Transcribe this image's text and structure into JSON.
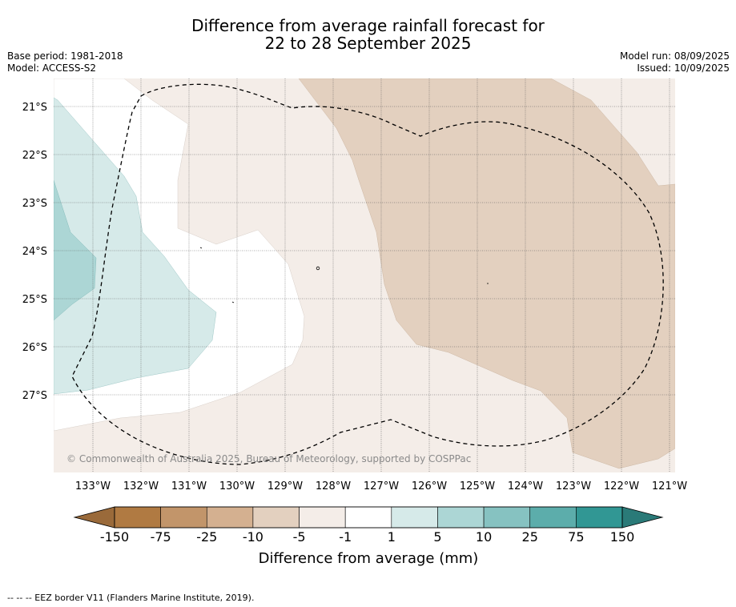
{
  "title": {
    "line1": "Difference from average rainfall forecast for",
    "line2": "22 to 28 September 2025"
  },
  "meta": {
    "base_period": "Base period: 1981-2018",
    "model": "Model: ACCESS-S2",
    "model_run": "Model run: 08/09/2025",
    "issued": "Issued: 10/09/2025"
  },
  "map": {
    "lat_labels": [
      "21°S",
      "22°S",
      "23°S",
      "24°S",
      "25°S",
      "26°S",
      "27°S"
    ],
    "lon_labels": [
      "133°W",
      "132°W",
      "131°W",
      "130°W",
      "129°W",
      "128°W",
      "127°W",
      "126°W",
      "125°W",
      "124°W",
      "123°W",
      "122°W",
      "121°W"
    ],
    "copyright": "© Commonwealth of Australia 2025, Bureau of Meteorology, supported by COSPPac",
    "eez_border": "dashed"
  },
  "colorbar": {
    "title": "Difference from average (mm)",
    "tick_labels": [
      "-150",
      "-75",
      "-25",
      "-10",
      "-5",
      "-1",
      "1",
      "5",
      "10",
      "25",
      "75",
      "150"
    ],
    "colors": [
      "#9a6a3a",
      "#b07a42",
      "#c2956a",
      "#d4b090",
      "#e3d0bf",
      "#f4ede8",
      "#ffffff",
      "#d6eae9",
      "#acd6d5",
      "#86c2c1",
      "#5cadab",
      "#319794",
      "#2a7a78"
    ]
  },
  "footer": {
    "legend_text": "--  --  -- EEZ border V11 (Flanders Marine Institute, 2019)."
  }
}
